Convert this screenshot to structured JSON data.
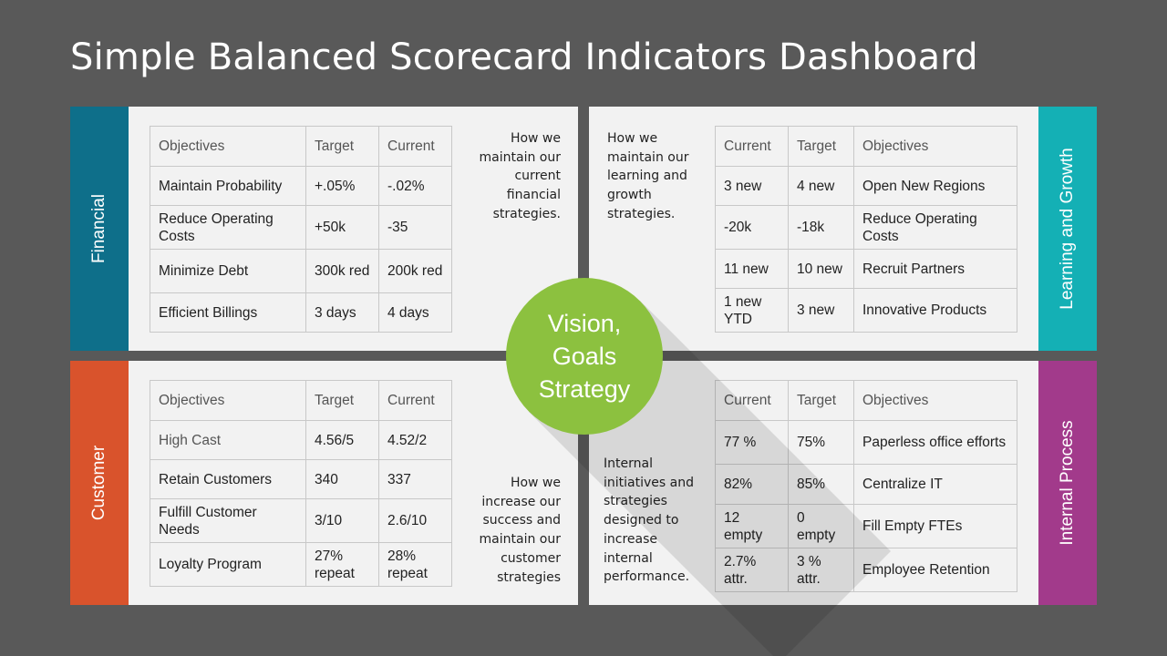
{
  "title": "Simple Balanced Scorecard Indicators Dashboard",
  "colors": {
    "background": "#595959",
    "panel": "#f2f2f2",
    "financial": "#0e6f8a",
    "learning": "#14b0b5",
    "customer": "#d9532c",
    "internal": "#a23a8b",
    "center": "#8cc13f"
  },
  "center": {
    "lines": [
      "Vision,",
      "Goals",
      "Strategy"
    ]
  },
  "financial": {
    "label": "Financial",
    "description": "How we\nmaintain our\ncurrent\nfinancial\nstrategies.",
    "headers": [
      "Objectives",
      "Target",
      "Current"
    ],
    "rows": [
      [
        "Maintain Probability",
        "+.05%",
        "-.02%"
      ],
      [
        "Reduce Operating Costs",
        "+50k",
        "-35"
      ],
      [
        "Minimize Debt",
        "300k red",
        "200k red"
      ],
      [
        "Efficient Billings",
        "3 days",
        "4 days"
      ]
    ]
  },
  "learning": {
    "label": "Learning and Growth",
    "description": "How we\nmaintain our\nlearning and\ngrowth\nstrategies.",
    "headers": [
      "Current",
      "Target",
      "Objectives"
    ],
    "rows": [
      [
        "3 new",
        "4 new",
        "Open New Regions"
      ],
      [
        "-20k",
        "-18k",
        "Reduce Operating Costs"
      ],
      [
        "11 new",
        "10 new",
        "Recruit Partners"
      ],
      [
        "1 new YTD",
        "3 new",
        "Innovative Products"
      ]
    ]
  },
  "customer": {
    "label": "Customer",
    "description": "How we\nincrease our\nsuccess and\nmaintain our\ncustomer\nstrategies",
    "headers": [
      "Objectives",
      "Target",
      "Current"
    ],
    "rows": [
      [
        "High Cast",
        "4.56/5",
        "4.52/2"
      ],
      [
        "Retain Customers",
        "340",
        "337"
      ],
      [
        "Fulfill Customer Needs",
        "3/10",
        "2.6/10"
      ],
      [
        "Loyalty Program",
        "27% repeat",
        "28% repeat"
      ]
    ]
  },
  "internal": {
    "label": "Internal Process",
    "description": "Internal\ninitiatives and\nstrategies\ndesigned to\nincrease\ninternal\nperformance.",
    "headers": [
      "Current",
      "Target",
      "Objectives"
    ],
    "rows": [
      [
        "77 %",
        "75%",
        "Paperless office efforts"
      ],
      [
        "82%",
        "85%",
        "Centralize IT"
      ],
      [
        "12 empty",
        "0 empty",
        "Fill Empty FTEs"
      ],
      [
        "2.7% attr.",
        "3 % attr.",
        "Employee Retention"
      ]
    ]
  }
}
